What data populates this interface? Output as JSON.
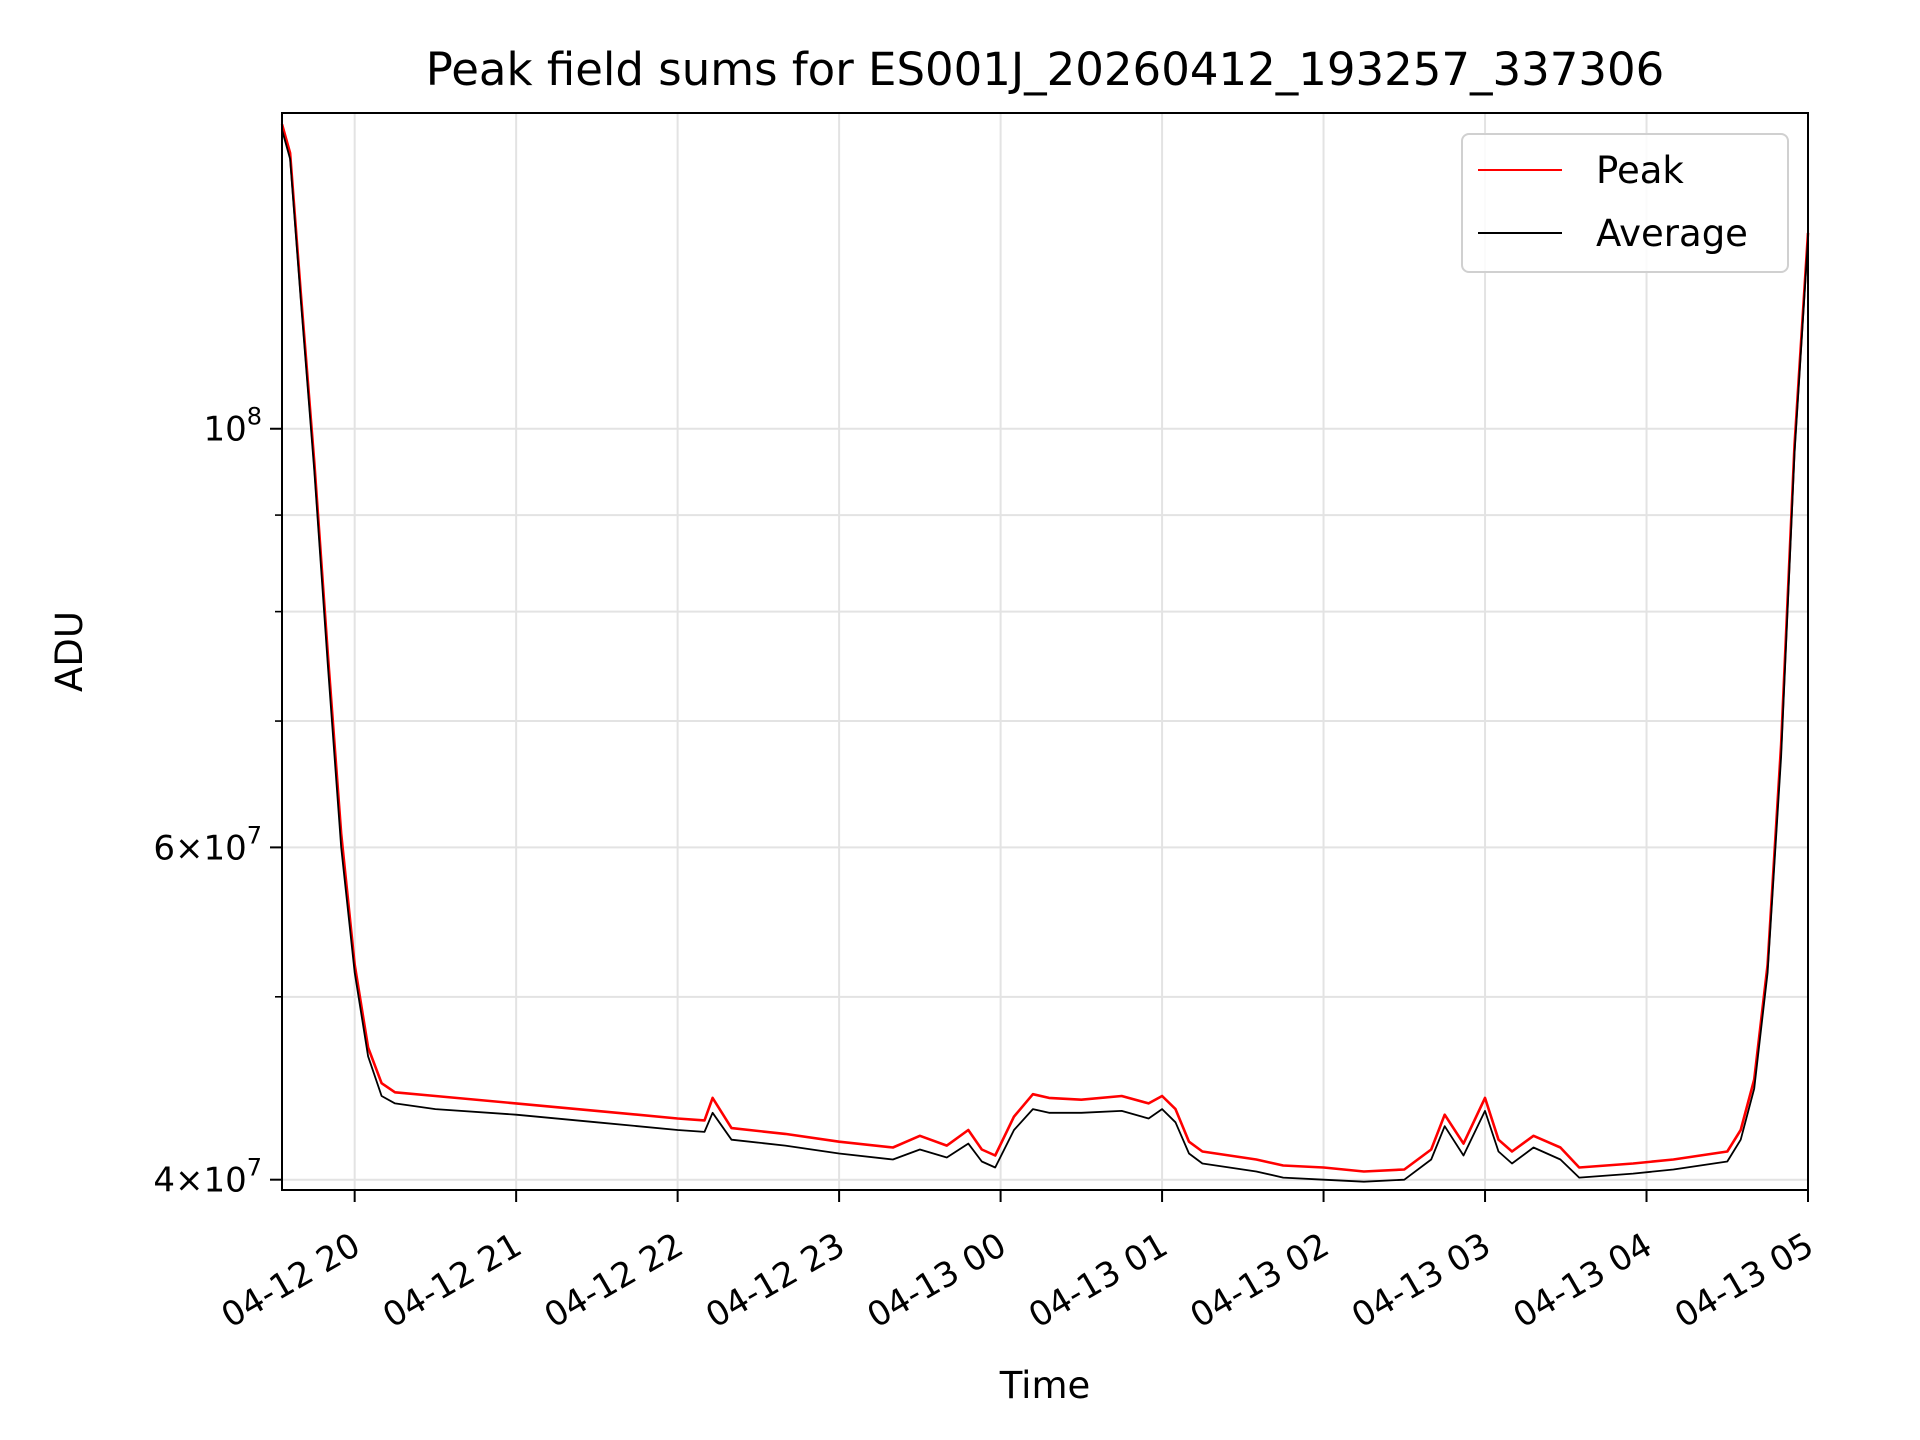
{
  "chart_data": {
    "type": "line",
    "title": "Peak field sums for ES001J_20260412_193257_337306",
    "xlabel": "Time",
    "ylabel": "ADU",
    "xlim": [
      "2026-04-12 19:33",
      "2026-04-13 05:00"
    ],
    "ylim": [
      39500000,
      147000000
    ],
    "yscale": "log",
    "grid": true,
    "legend": "upper right",
    "x_ticks": [
      "04-12 20",
      "04-12 21",
      "04-12 22",
      "04-12 23",
      "04-13 00",
      "04-13 01",
      "04-13 02",
      "04-13 03",
      "04-13 04",
      "04-13 05"
    ],
    "y_tick_labels": [
      {
        "value": 40000000,
        "mantissa": "4",
        "exp": "7"
      },
      {
        "value": 60000000,
        "mantissa": "6",
        "exp": "7"
      },
      {
        "value": 100000000,
        "mantissa": "",
        "exp": "8"
      }
    ],
    "y_minor_ticks": [
      50000000,
      70000000,
      80000000,
      90000000
    ],
    "series": [
      {
        "name": "Peak",
        "color": "#ff0000",
        "x": [
          "2026-04-12 19:33",
          "2026-04-12 19:36",
          "2026-04-12 19:40",
          "2026-04-12 19:45",
          "2026-04-12 19:50",
          "2026-04-12 19:55",
          "2026-04-12 20:00",
          "2026-04-12 20:05",
          "2026-04-12 20:10",
          "2026-04-12 20:15",
          "2026-04-12 20:30",
          "2026-04-12 21:00",
          "2026-04-12 21:30",
          "2026-04-12 22:00",
          "2026-04-12 22:10",
          "2026-04-12 22:13",
          "2026-04-12 22:20",
          "2026-04-12 22:40",
          "2026-04-12 23:00",
          "2026-04-12 23:20",
          "2026-04-12 23:30",
          "2026-04-12 23:40",
          "2026-04-12 23:48",
          "2026-04-12 23:53",
          "2026-04-12 23:58",
          "2026-04-13 00:05",
          "2026-04-13 00:12",
          "2026-04-13 00:18",
          "2026-04-13 00:30",
          "2026-04-13 00:45",
          "2026-04-13 00:55",
          "2026-04-13 01:00",
          "2026-04-13 01:05",
          "2026-04-13 01:10",
          "2026-04-13 01:15",
          "2026-04-13 01:25",
          "2026-04-13 01:35",
          "2026-04-13 01:45",
          "2026-04-13 02:00",
          "2026-04-13 02:15",
          "2026-04-13 02:30",
          "2026-04-13 02:40",
          "2026-04-13 02:45",
          "2026-04-13 02:52",
          "2026-04-13 03:00",
          "2026-04-13 03:05",
          "2026-04-13 03:10",
          "2026-04-13 03:18",
          "2026-04-13 03:28",
          "2026-04-13 03:35",
          "2026-04-13 03:45",
          "2026-04-13 03:55",
          "2026-04-13 04:10",
          "2026-04-13 04:20",
          "2026-04-13 04:30",
          "2026-04-13 04:35",
          "2026-04-13 04:40",
          "2026-04-13 04:45",
          "2026-04-13 04:50",
          "2026-04-13 04:55",
          "2026-04-13 05:00"
        ],
        "y": [
          145000000,
          140000000,
          118000000,
          96000000,
          76000000,
          61000000,
          52000000,
          47000000,
          45000000,
          44500000,
          44300000,
          43900000,
          43500000,
          43100000,
          43000000,
          44200000,
          42600000,
          42300000,
          41900000,
          41600000,
          42200000,
          41700000,
          42500000,
          41500000,
          41200000,
          43200000,
          44400000,
          44200000,
          44100000,
          44300000,
          43900000,
          44300000,
          43600000,
          41900000,
          41400000,
          41200000,
          41000000,
          40700000,
          40600000,
          40400000,
          40500000,
          41500000,
          43300000,
          41800000,
          44200000,
          42000000,
          41400000,
          42200000,
          41600000,
          40600000,
          40700000,
          40800000,
          41000000,
          41200000,
          41400000,
          42500000,
          45200000,
          52000000,
          68000000,
          98000000,
          127000000
        ]
      },
      {
        "name": "Average",
        "color": "#000000",
        "x": [
          "2026-04-12 19:33",
          "2026-04-12 19:36",
          "2026-04-12 19:40",
          "2026-04-12 19:45",
          "2026-04-12 19:50",
          "2026-04-12 19:55",
          "2026-04-12 20:00",
          "2026-04-12 20:05",
          "2026-04-12 20:10",
          "2026-04-12 20:15",
          "2026-04-12 20:30",
          "2026-04-12 21:00",
          "2026-04-12 21:30",
          "2026-04-12 22:00",
          "2026-04-12 22:10",
          "2026-04-12 22:13",
          "2026-04-12 22:20",
          "2026-04-12 22:40",
          "2026-04-12 23:00",
          "2026-04-12 23:20",
          "2026-04-12 23:30",
          "2026-04-12 23:40",
          "2026-04-12 23:48",
          "2026-04-12 23:53",
          "2026-04-12 23:58",
          "2026-04-13 00:05",
          "2026-04-13 00:12",
          "2026-04-13 00:18",
          "2026-04-13 00:30",
          "2026-04-13 00:45",
          "2026-04-13 00:55",
          "2026-04-13 01:00",
          "2026-04-13 01:05",
          "2026-04-13 01:10",
          "2026-04-13 01:15",
          "2026-04-13 01:25",
          "2026-04-13 01:35",
          "2026-04-13 01:45",
          "2026-04-13 02:00",
          "2026-04-13 02:15",
          "2026-04-13 02:30",
          "2026-04-13 02:40",
          "2026-04-13 02:45",
          "2026-04-13 02:52",
          "2026-04-13 03:00",
          "2026-04-13 03:05",
          "2026-04-13 03:10",
          "2026-04-13 03:18",
          "2026-04-13 03:28",
          "2026-04-13 03:35",
          "2026-04-13 03:45",
          "2026-04-13 03:55",
          "2026-04-13 04:10",
          "2026-04-13 04:20",
          "2026-04-13 04:30",
          "2026-04-13 04:35",
          "2026-04-13 04:40",
          "2026-04-13 04:45",
          "2026-04-13 04:50",
          "2026-04-13 04:55",
          "2026-04-13 05:00"
        ],
        "y": [
          144000000,
          139000000,
          117000000,
          95000000,
          75000000,
          60000000,
          51500000,
          46500000,
          44300000,
          43900000,
          43600000,
          43300000,
          42900000,
          42500000,
          42400000,
          43400000,
          42000000,
          41700000,
          41300000,
          41000000,
          41500000,
          41100000,
          41800000,
          40900000,
          40600000,
          42500000,
          43600000,
          43400000,
          43400000,
          43500000,
          43100000,
          43600000,
          42900000,
          41300000,
          40800000,
          40600000,
          40400000,
          40100000,
          40000000,
          39900000,
          40000000,
          41000000,
          42700000,
          41200000,
          43500000,
          41400000,
          40800000,
          41600000,
          41000000,
          40100000,
          40200000,
          40300000,
          40500000,
          40700000,
          40900000,
          42000000,
          44700000,
          51500000,
          67000000,
          97000000,
          126000000
        ]
      }
    ]
  }
}
